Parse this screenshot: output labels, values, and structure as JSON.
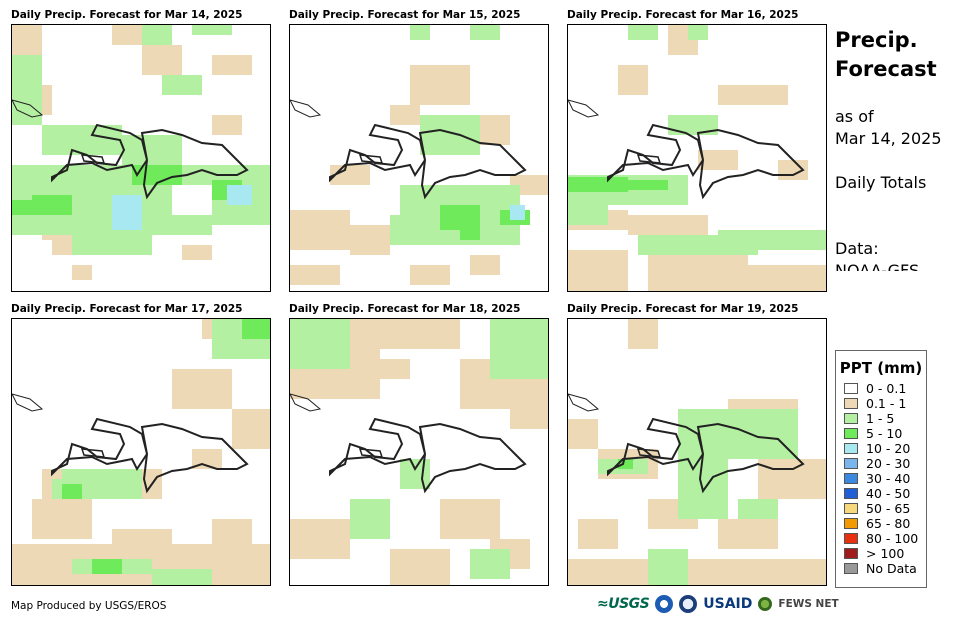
{
  "panels": [
    {
      "title": "Daily Precip. Forecast for Mar 14, 2025"
    },
    {
      "title": "Daily Precip. Forecast for Mar 15, 2025"
    },
    {
      "title": "Daily Precip. Forecast for Mar 16, 2025"
    },
    {
      "title": "Daily Precip. Forecast for Mar 17, 2025"
    },
    {
      "title": "Daily Precip. Forecast for Mar 18, 2025"
    },
    {
      "title": "Daily Precip. Forecast for Mar 19, 2025"
    }
  ],
  "side": {
    "title_line1": "Precip.",
    "title_line2": "Forecast",
    "asof_line1": "as of",
    "asof_line2": "Mar 14, 2025",
    "totals": "Daily Totals",
    "data_line1": "Data:",
    "data_line2": "NOAA-GFS"
  },
  "legend": {
    "title": "PPT (mm)",
    "items": [
      {
        "label": "0 - 0.1",
        "color": "#ffffff"
      },
      {
        "label": "0.1 - 1",
        "color": "#edd9b5"
      },
      {
        "label": "1 - 5",
        "color": "#b4f0a2"
      },
      {
        "label": "5 - 10",
        "color": "#6fea5a"
      },
      {
        "label": "10 - 20",
        "color": "#a8e8f0"
      },
      {
        "label": "20 - 30",
        "color": "#7ab6ec"
      },
      {
        "label": "30 - 40",
        "color": "#3a88e0"
      },
      {
        "label": "40 - 50",
        "color": "#1f5fd8"
      },
      {
        "label": "50 - 65",
        "color": "#f7d87a"
      },
      {
        "label": "65 - 80",
        "color": "#f29a00"
      },
      {
        "label": "80 - 100",
        "color": "#e83010"
      },
      {
        "label": "> 100",
        "color": "#a01c1c"
      },
      {
        "label": "No Data",
        "color": "#999999"
      }
    ]
  },
  "footer": {
    "credit": "Map Produced by USGS/EROS",
    "logo_usgs": "≈USGS",
    "logo_usaid": "USAID",
    "logo_fews": "FEWS NET"
  }
}
